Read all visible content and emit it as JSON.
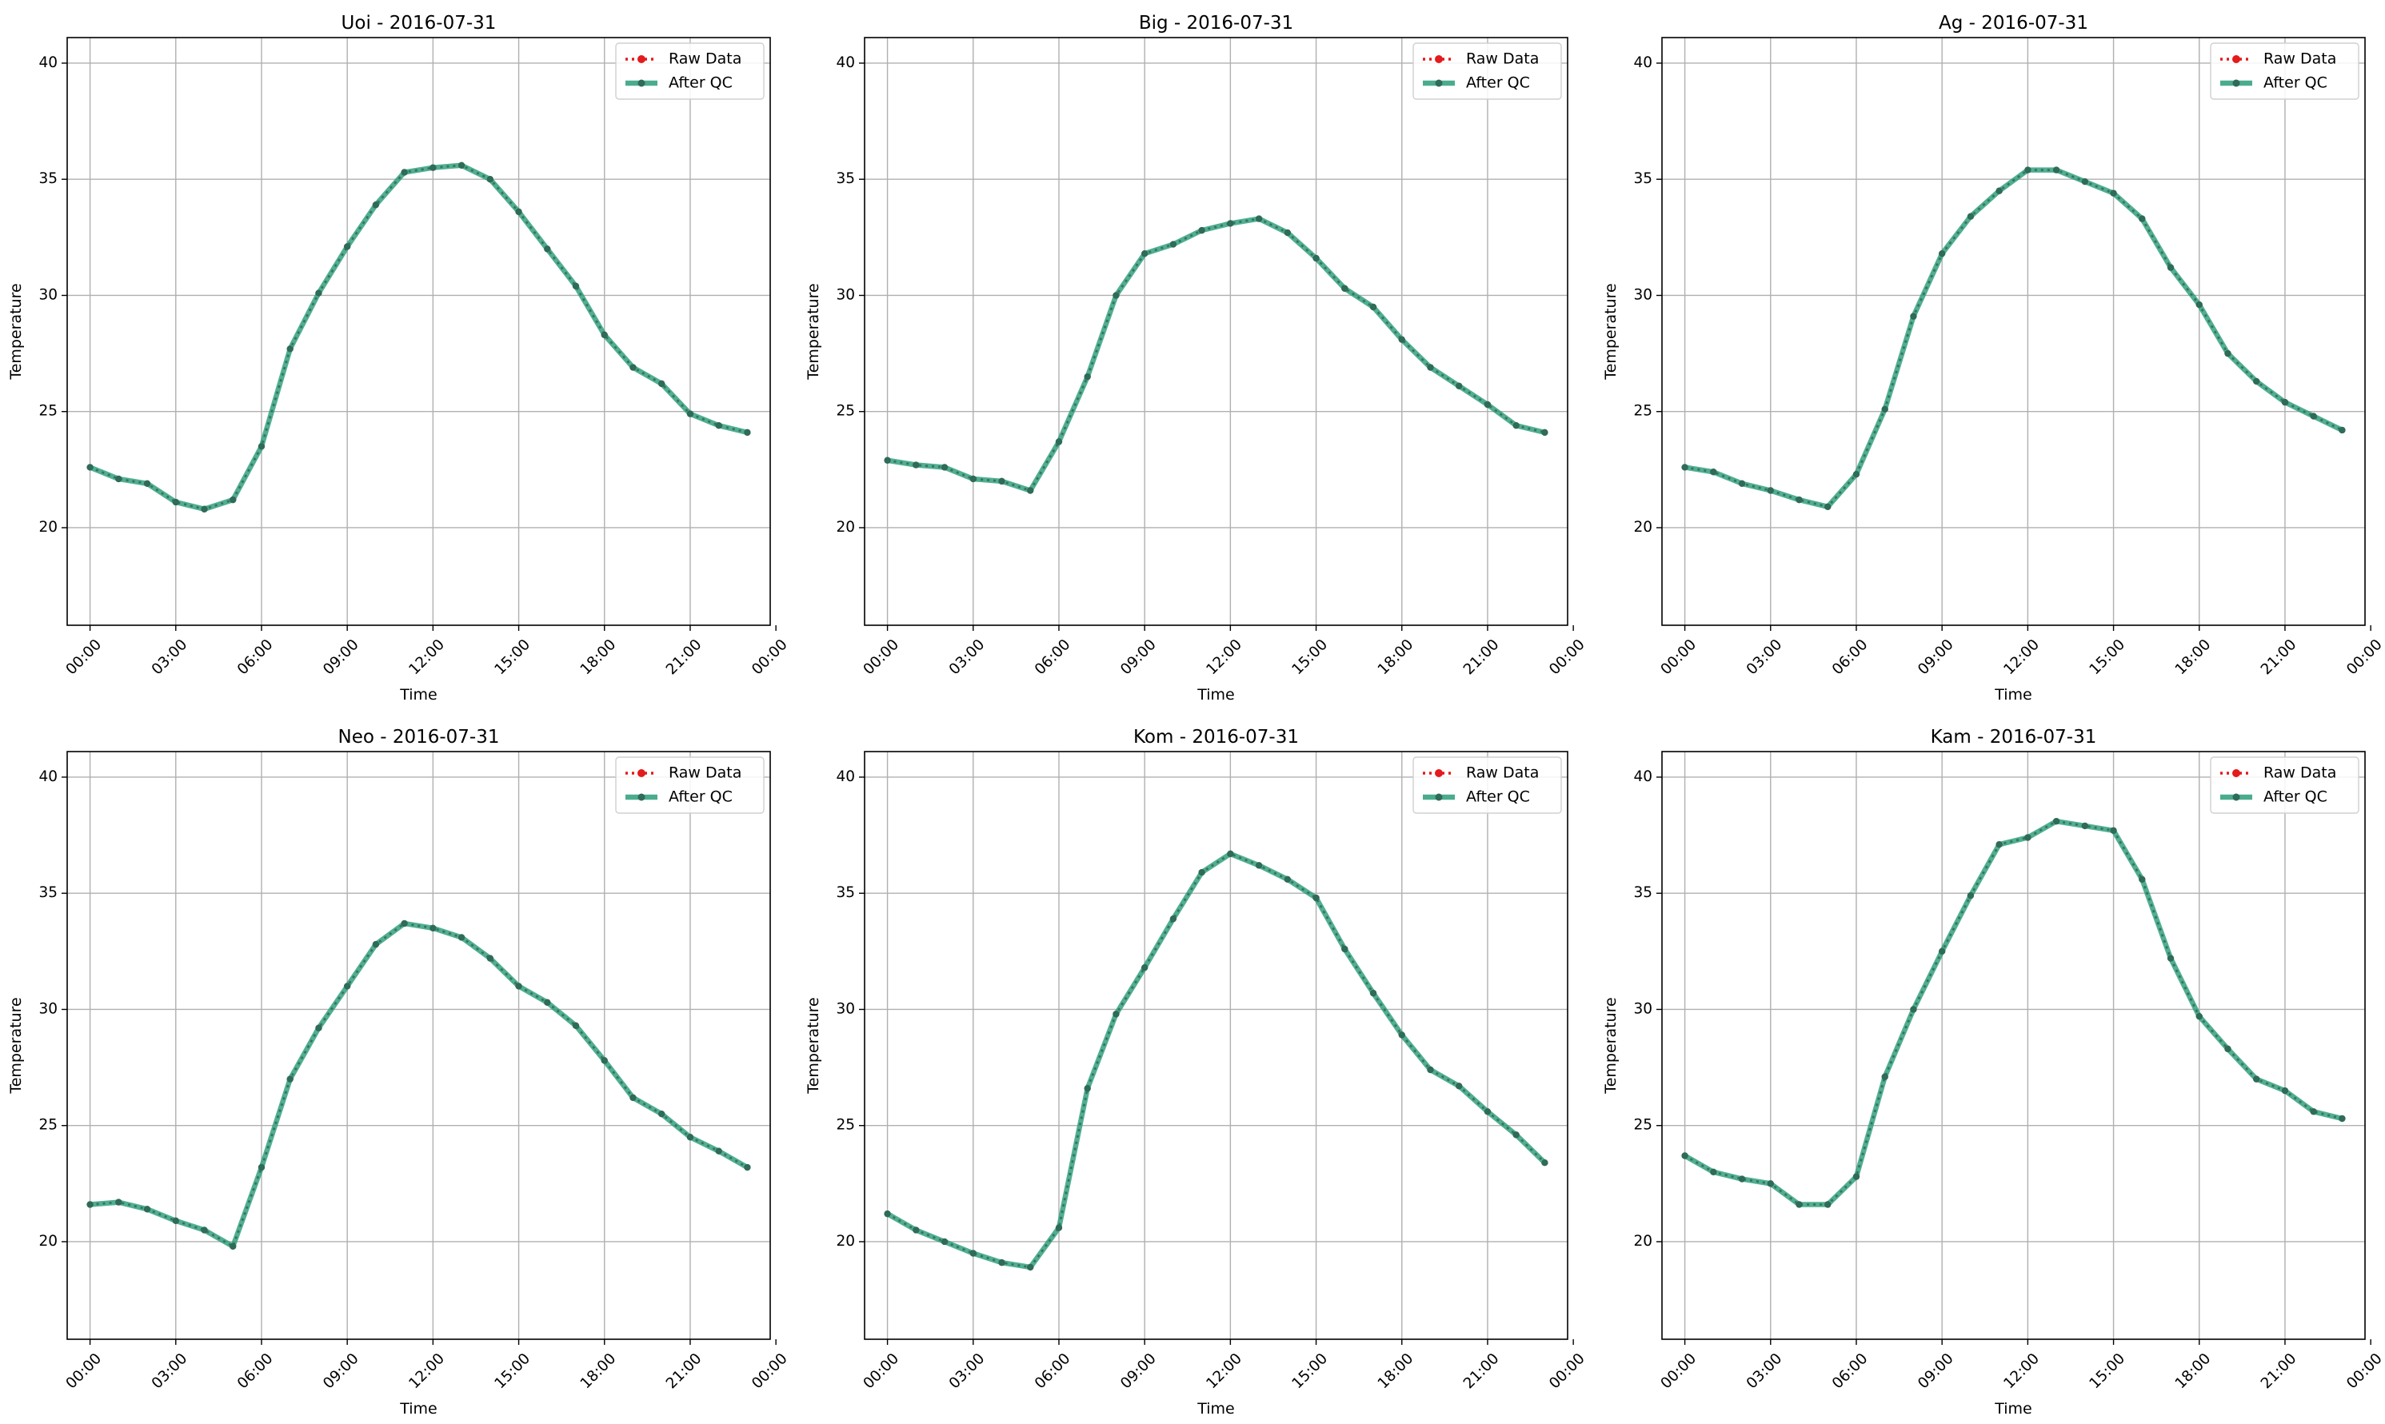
{
  "colors": {
    "raw": "#e41a1c",
    "qc": "#2a9d7a",
    "qc_marker": "#2e6b58",
    "grid": "#b0b0b0"
  },
  "chart_data": [
    {
      "type": "line",
      "title": "Uoi - 2016-07-31",
      "xlabel": "Time",
      "ylabel": "Temperature",
      "ylim": [
        15.8,
        41.1
      ],
      "xlim": [
        -0.8,
        23.8
      ],
      "yticks": [
        20,
        25,
        30,
        35,
        40
      ],
      "xticks": [
        0,
        3,
        6,
        9,
        12,
        15,
        18,
        21,
        24
      ],
      "xtick_labels": [
        "00:00",
        "03:00",
        "06:00",
        "09:00",
        "12:00",
        "15:00",
        "18:00",
        "21:00",
        "00:00"
      ],
      "grid": true,
      "legend": "top-right",
      "x": [
        0,
        1,
        2,
        3,
        4,
        5,
        6,
        7,
        8,
        9,
        10,
        11,
        12,
        13,
        14,
        15,
        16,
        17,
        18,
        19,
        20,
        21,
        22,
        23
      ],
      "series": [
        {
          "name": "Raw Data",
          "values": [
            22.6,
            22.1,
            21.9,
            21.1,
            20.8,
            21.2,
            23.5,
            27.7,
            30.1,
            32.1,
            33.9,
            35.3,
            35.5,
            35.6,
            35.0,
            33.6,
            32.0,
            30.4,
            28.3,
            26.9,
            26.2,
            24.9,
            24.4,
            24.1
          ]
        },
        {
          "name": "After QC",
          "values": [
            22.6,
            22.1,
            21.9,
            21.1,
            20.8,
            21.2,
            23.5,
            27.7,
            30.1,
            32.1,
            33.9,
            35.3,
            35.5,
            35.6,
            35.0,
            33.6,
            32.0,
            30.4,
            28.3,
            26.9,
            26.2,
            24.9,
            24.4,
            24.1
          ]
        }
      ]
    },
    {
      "type": "line",
      "title": "Big - 2016-07-31",
      "xlabel": "Time",
      "ylabel": "Temperature",
      "ylim": [
        15.8,
        41.1
      ],
      "xlim": [
        -0.8,
        23.8
      ],
      "yticks": [
        20,
        25,
        30,
        35,
        40
      ],
      "xticks": [
        0,
        3,
        6,
        9,
        12,
        15,
        18,
        21,
        24
      ],
      "xtick_labels": [
        "00:00",
        "03:00",
        "06:00",
        "09:00",
        "12:00",
        "15:00",
        "18:00",
        "21:00",
        "00:00"
      ],
      "grid": true,
      "legend": "top-right",
      "x": [
        0,
        1,
        2,
        3,
        4,
        5,
        6,
        7,
        8,
        9,
        10,
        11,
        12,
        13,
        14,
        15,
        16,
        17,
        18,
        19,
        20,
        21,
        22,
        23
      ],
      "series": [
        {
          "name": "Raw Data",
          "values": [
            22.9,
            22.7,
            22.6,
            22.1,
            22.0,
            21.6,
            23.7,
            26.5,
            30.0,
            31.8,
            32.2,
            32.8,
            33.1,
            33.3,
            32.7,
            31.6,
            30.3,
            29.5,
            28.1,
            26.9,
            26.1,
            25.3,
            24.4,
            24.1
          ]
        },
        {
          "name": "After QC",
          "values": [
            22.9,
            22.7,
            22.6,
            22.1,
            22.0,
            21.6,
            23.7,
            26.5,
            30.0,
            31.8,
            32.2,
            32.8,
            33.1,
            33.3,
            32.7,
            31.6,
            30.3,
            29.5,
            28.1,
            26.9,
            26.1,
            25.3,
            24.4,
            24.1
          ]
        }
      ]
    },
    {
      "type": "line",
      "title": "Ag - 2016-07-31",
      "xlabel": "Time",
      "ylabel": "Temperature",
      "ylim": [
        15.8,
        41.1
      ],
      "xlim": [
        -0.8,
        23.8
      ],
      "yticks": [
        20,
        25,
        30,
        35,
        40
      ],
      "xticks": [
        0,
        3,
        6,
        9,
        12,
        15,
        18,
        21,
        24
      ],
      "xtick_labels": [
        "00:00",
        "03:00",
        "06:00",
        "09:00",
        "12:00",
        "15:00",
        "18:00",
        "21:00",
        "00:00"
      ],
      "grid": true,
      "legend": "top-right",
      "x": [
        0,
        1,
        2,
        3,
        4,
        5,
        6,
        7,
        8,
        9,
        10,
        11,
        12,
        13,
        14,
        15,
        16,
        17,
        18,
        19,
        20,
        21,
        22,
        23
      ],
      "series": [
        {
          "name": "Raw Data",
          "values": [
            22.6,
            22.4,
            21.9,
            21.6,
            21.2,
            20.9,
            22.3,
            25.1,
            29.1,
            31.8,
            33.4,
            34.5,
            35.4,
            35.4,
            34.9,
            34.4,
            33.3,
            31.2,
            29.6,
            27.5,
            26.3,
            25.4,
            24.8,
            24.2
          ]
        },
        {
          "name": "After QC",
          "values": [
            22.6,
            22.4,
            21.9,
            21.6,
            21.2,
            20.9,
            22.3,
            25.1,
            29.1,
            31.8,
            33.4,
            34.5,
            35.4,
            35.4,
            34.9,
            34.4,
            33.3,
            31.2,
            29.6,
            27.5,
            26.3,
            25.4,
            24.8,
            24.2
          ]
        }
      ]
    },
    {
      "type": "line",
      "title": "Neo - 2016-07-31",
      "xlabel": "Time",
      "ylabel": "Temperature",
      "ylim": [
        15.8,
        41.1
      ],
      "xlim": [
        -0.8,
        23.8
      ],
      "yticks": [
        20,
        25,
        30,
        35,
        40
      ],
      "xticks": [
        0,
        3,
        6,
        9,
        12,
        15,
        18,
        21,
        24
      ],
      "xtick_labels": [
        "00:00",
        "03:00",
        "06:00",
        "09:00",
        "12:00",
        "15:00",
        "18:00",
        "21:00",
        "00:00"
      ],
      "grid": true,
      "legend": "top-right",
      "x": [
        0,
        1,
        2,
        3,
        4,
        5,
        6,
        7,
        8,
        9,
        10,
        11,
        12,
        13,
        14,
        15,
        16,
        17,
        18,
        19,
        20,
        21,
        22,
        23
      ],
      "series": [
        {
          "name": "Raw Data",
          "values": [
            21.6,
            21.7,
            21.4,
            20.9,
            20.5,
            19.8,
            23.2,
            27.0,
            29.2,
            31.0,
            32.8,
            33.7,
            33.5,
            33.1,
            32.2,
            31.0,
            30.3,
            29.3,
            27.8,
            26.2,
            25.5,
            24.5,
            23.9,
            23.2
          ]
        },
        {
          "name": "After QC",
          "values": [
            21.6,
            21.7,
            21.4,
            20.9,
            20.5,
            19.8,
            23.2,
            27.0,
            29.2,
            31.0,
            32.8,
            33.7,
            33.5,
            33.1,
            32.2,
            31.0,
            30.3,
            29.3,
            27.8,
            26.2,
            25.5,
            24.5,
            23.9,
            23.2
          ]
        }
      ]
    },
    {
      "type": "line",
      "title": "Kom - 2016-07-31",
      "xlabel": "Time",
      "ylabel": "Temperature",
      "ylim": [
        15.8,
        41.1
      ],
      "xlim": [
        -0.8,
        23.8
      ],
      "yticks": [
        20,
        25,
        30,
        35,
        40
      ],
      "xticks": [
        0,
        3,
        6,
        9,
        12,
        15,
        18,
        21,
        24
      ],
      "xtick_labels": [
        "00:00",
        "03:00",
        "06:00",
        "09:00",
        "12:00",
        "15:00",
        "18:00",
        "21:00",
        "00:00"
      ],
      "grid": true,
      "legend": "top-right",
      "x": [
        0,
        1,
        2,
        3,
        4,
        5,
        6,
        7,
        8,
        9,
        10,
        11,
        12,
        13,
        14,
        15,
        16,
        17,
        18,
        19,
        20,
        21,
        22,
        23
      ],
      "series": [
        {
          "name": "Raw Data",
          "values": [
            21.2,
            20.5,
            20.0,
            19.5,
            19.1,
            18.9,
            20.6,
            26.6,
            29.8,
            31.8,
            33.9,
            35.9,
            36.7,
            36.2,
            35.6,
            34.8,
            32.6,
            30.7,
            28.9,
            27.4,
            26.7,
            25.6,
            24.6,
            23.4
          ]
        },
        {
          "name": "After QC",
          "values": [
            21.2,
            20.5,
            20.0,
            19.5,
            19.1,
            18.9,
            20.6,
            26.6,
            29.8,
            31.8,
            33.9,
            35.9,
            36.7,
            36.2,
            35.6,
            34.8,
            32.6,
            30.7,
            28.9,
            27.4,
            26.7,
            25.6,
            24.6,
            23.4
          ]
        }
      ]
    },
    {
      "type": "line",
      "title": "Kam - 2016-07-31",
      "xlabel": "Time",
      "ylabel": "Temperature",
      "ylim": [
        15.8,
        41.1
      ],
      "xlim": [
        -0.8,
        23.8
      ],
      "yticks": [
        20,
        25,
        30,
        35,
        40
      ],
      "xticks": [
        0,
        3,
        6,
        9,
        12,
        15,
        18,
        21,
        24
      ],
      "xtick_labels": [
        "00:00",
        "03:00",
        "06:00",
        "09:00",
        "12:00",
        "15:00",
        "18:00",
        "21:00",
        "00:00"
      ],
      "grid": true,
      "legend": "top-right",
      "x": [
        0,
        1,
        2,
        3,
        4,
        5,
        6,
        7,
        8,
        9,
        10,
        11,
        12,
        13,
        14,
        15,
        16,
        17,
        18,
        19,
        20,
        21,
        22,
        23
      ],
      "series": [
        {
          "name": "Raw Data",
          "values": [
            23.7,
            23.0,
            22.7,
            22.5,
            21.6,
            21.6,
            22.8,
            27.1,
            30.0,
            32.5,
            34.9,
            37.1,
            37.4,
            38.1,
            37.9,
            37.7,
            35.6,
            32.2,
            29.7,
            28.3,
            27.0,
            26.5,
            25.6,
            25.3
          ]
        },
        {
          "name": "After QC",
          "values": [
            23.7,
            23.0,
            22.7,
            22.5,
            21.6,
            21.6,
            22.8,
            27.1,
            30.0,
            32.5,
            34.9,
            37.1,
            37.4,
            38.1,
            37.9,
            37.7,
            35.6,
            32.2,
            29.7,
            28.3,
            27.0,
            26.5,
            25.6,
            25.3
          ]
        }
      ]
    }
  ]
}
